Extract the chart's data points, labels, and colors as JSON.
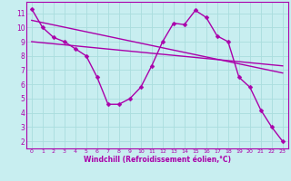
{
  "bg_color": "#c8eef0",
  "line_color": "#aa00aa",
  "grid_color": "#aadddd",
  "xlabel": "Windchill (Refroidissement éolien,°C)",
  "xlim": [
    -0.5,
    23.5
  ],
  "ylim": [
    1.5,
    11.8
  ],
  "xticks": [
    0,
    1,
    2,
    3,
    4,
    5,
    6,
    7,
    8,
    9,
    10,
    11,
    12,
    13,
    14,
    15,
    16,
    17,
    18,
    19,
    20,
    21,
    22,
    23
  ],
  "yticks": [
    2,
    3,
    4,
    5,
    6,
    7,
    8,
    9,
    10,
    11
  ],
  "line1_x": [
    0,
    1,
    2,
    3,
    4,
    5,
    6,
    7,
    8,
    9,
    10,
    11,
    12,
    13,
    14,
    15,
    16,
    17,
    18,
    19,
    20,
    21,
    22,
    23
  ],
  "line1_y": [
    11.3,
    10.0,
    9.3,
    9.0,
    8.5,
    8.0,
    6.5,
    4.6,
    4.6,
    5.0,
    5.8,
    7.3,
    9.0,
    10.3,
    10.2,
    11.2,
    10.7,
    9.4,
    9.0,
    6.5,
    5.8,
    4.2,
    3.0,
    2.0
  ],
  "line2_x": [
    0,
    23
  ],
  "line2_y": [
    10.5,
    6.8
  ],
  "line3_x": [
    0,
    23
  ],
  "line3_y": [
    9.0,
    7.3
  ],
  "marker": "D",
  "markersize": 2.5,
  "linewidth": 1.0
}
